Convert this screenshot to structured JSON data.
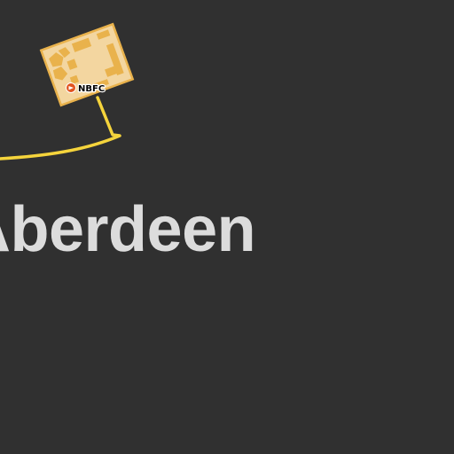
{
  "map": {
    "background_color": "#303030",
    "place_label": {
      "text": "Aberdeen",
      "visible_text": "erdeen",
      "color": "#dcdcdc"
    },
    "road": {
      "color": "#f5d43c",
      "type": "highlighted road"
    },
    "venue": {
      "fill_color": "#f3d6a0",
      "building_color": "#e9b24c",
      "label": "NBFC",
      "icon": "pizza-icon",
      "icon_color": "#e2541f"
    }
  }
}
